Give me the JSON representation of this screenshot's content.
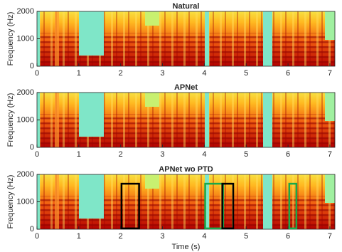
{
  "chart_data": [
    {
      "type": "spectrogram",
      "title": "Natural",
      "ylabel": "Frequency (Hz)",
      "xlim": [
        0,
        7.12
      ],
      "ylim": [
        0,
        2000
      ],
      "xticks": [
        0,
        1,
        2,
        3,
        4,
        5,
        6,
        7
      ],
      "yticks": [
        0,
        1000,
        2000
      ]
    },
    {
      "type": "spectrogram",
      "title": "APNet",
      "ylabel": "Frequency (Hz)",
      "xlim": [
        0,
        7.12
      ],
      "ylim": [
        0,
        2000
      ],
      "xticks": [
        0,
        1,
        2,
        3,
        4,
        5,
        6,
        7
      ],
      "yticks": [
        0,
        1000,
        2000
      ]
    },
    {
      "type": "spectrogram",
      "title": "APNet wo PTD",
      "ylabel": "Frequency (Hz)",
      "xlabel": "Time (s)",
      "xlim": [
        0,
        7.12
      ],
      "ylim": [
        0,
        2000
      ],
      "xticks": [
        0,
        1,
        2,
        3,
        4,
        5,
        6,
        7
      ],
      "yticks": [
        0,
        1000,
        2000
      ],
      "boxes": [
        {
          "x": [
            2.02,
            2.44
          ],
          "y": [
            30,
            1660
          ],
          "color": "#000000"
        },
        {
          "x": [
            4.02,
            4.45
          ],
          "y": [
            30,
            1660
          ],
          "color": "#1aa84a"
        },
        {
          "x": [
            4.43,
            4.69
          ],
          "y": [
            30,
            1660
          ],
          "color": "#000000"
        },
        {
          "x": [
            6.03,
            6.2
          ],
          "y": [
            30,
            1660
          ],
          "color": "#1aa84a"
        }
      ]
    }
  ]
}
